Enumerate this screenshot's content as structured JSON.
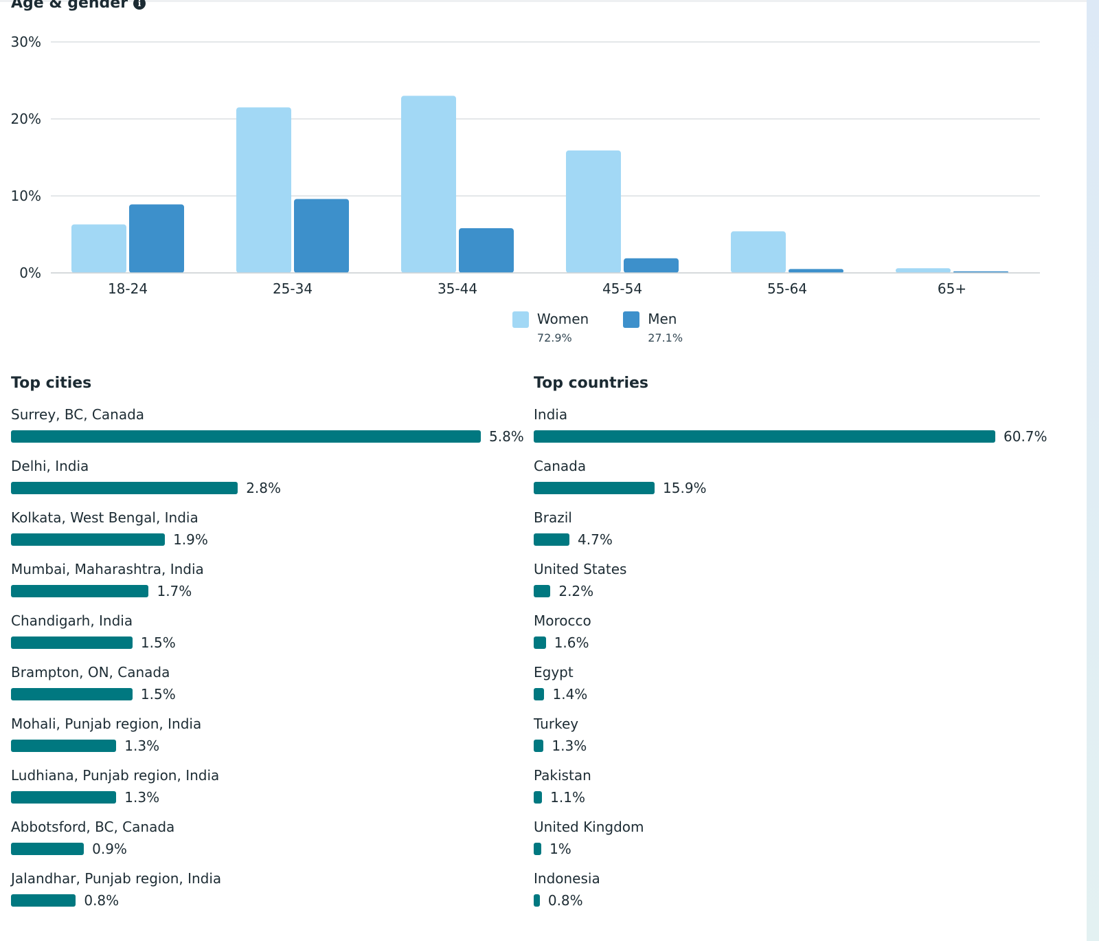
{
  "header": {
    "title": "Age & gender",
    "info_icon": "info-icon"
  },
  "colors": {
    "women": "#a2d8f5",
    "men": "#3d90cb",
    "bar": "#007880",
    "grid": "#dcdfe2"
  },
  "chart_data": {
    "type": "bar",
    "title": "Age & gender",
    "xlabel": "",
    "ylabel": "",
    "categories": [
      "18-24",
      "25-34",
      "35-44",
      "45-54",
      "55-64",
      "65+"
    ],
    "series": [
      {
        "name": "Women",
        "total": "72.9%",
        "values": [
          6.3,
          21.5,
          23.0,
          15.9,
          5.4,
          0.6
        ]
      },
      {
        "name": "Men",
        "total": "27.1%",
        "values": [
          8.9,
          9.6,
          5.8,
          1.9,
          0.5,
          0.2
        ]
      }
    ],
    "yticks": [
      "0%",
      "10%",
      "20%",
      "30%"
    ],
    "ylim": [
      0,
      30
    ],
    "grid": true,
    "legend": "bottom-center"
  },
  "legend": [
    {
      "label": "Women",
      "pct": "72.9%"
    },
    {
      "label": "Men",
      "pct": "27.1%"
    }
  ],
  "top_cities": {
    "title": "Top cities",
    "max": 5.8,
    "items": [
      {
        "label": "Surrey, BC, Canada",
        "value": 5.8,
        "display": "5.8%"
      },
      {
        "label": "Delhi, India",
        "value": 2.8,
        "display": "2.8%"
      },
      {
        "label": "Kolkata, West Bengal, India",
        "value": 1.9,
        "display": "1.9%"
      },
      {
        "label": "Mumbai, Maharashtra, India",
        "value": 1.7,
        "display": "1.7%"
      },
      {
        "label": "Chandigarh, India",
        "value": 1.5,
        "display": "1.5%"
      },
      {
        "label": "Brampton, ON, Canada",
        "value": 1.5,
        "display": "1.5%"
      },
      {
        "label": "Mohali, Punjab region, India",
        "value": 1.3,
        "display": "1.3%"
      },
      {
        "label": "Ludhiana, Punjab region, India",
        "value": 1.3,
        "display": "1.3%"
      },
      {
        "label": "Abbotsford, BC, Canada",
        "value": 0.9,
        "display": "0.9%"
      },
      {
        "label": "Jalandhar, Punjab region, India",
        "value": 0.8,
        "display": "0.8%"
      }
    ]
  },
  "top_countries": {
    "title": "Top countries",
    "max": 60.7,
    "items": [
      {
        "label": "India",
        "value": 60.7,
        "display": "60.7%"
      },
      {
        "label": "Canada",
        "value": 15.9,
        "display": "15.9%"
      },
      {
        "label": "Brazil",
        "value": 4.7,
        "display": "4.7%"
      },
      {
        "label": "United States",
        "value": 2.2,
        "display": "2.2%"
      },
      {
        "label": "Morocco",
        "value": 1.6,
        "display": "1.6%"
      },
      {
        "label": "Egypt",
        "value": 1.4,
        "display": "1.4%"
      },
      {
        "label": "Turkey",
        "value": 1.3,
        "display": "1.3%"
      },
      {
        "label": "Pakistan",
        "value": 1.1,
        "display": "1.1%"
      },
      {
        "label": "United Kingdom",
        "value": 1.0,
        "display": "1%"
      },
      {
        "label": "Indonesia",
        "value": 0.8,
        "display": "0.8%"
      }
    ]
  }
}
